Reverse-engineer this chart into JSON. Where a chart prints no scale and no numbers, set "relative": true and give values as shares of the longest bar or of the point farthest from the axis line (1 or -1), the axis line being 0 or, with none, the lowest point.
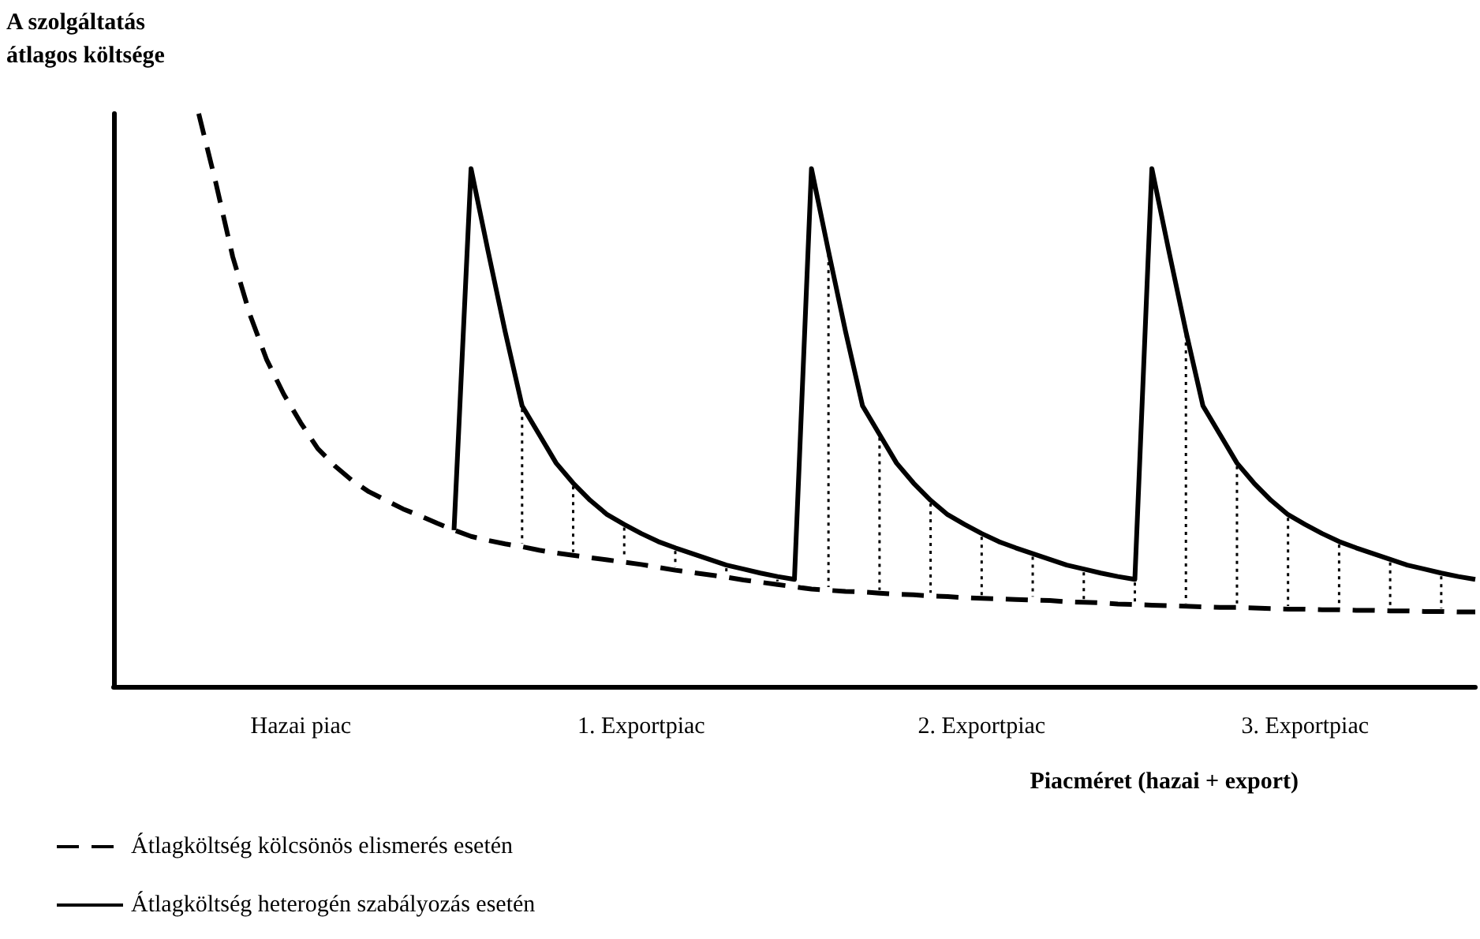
{
  "chart_data": {
    "type": "line",
    "relative": true,
    "ylabel": "A szolgáltatás\nátlagos költsége",
    "xlabel": "Piacméret (hazai + export)",
    "categories": [
      null,
      null,
      null,
      null,
      null,
      null,
      null,
      null,
      null,
      null,
      null,
      "Hazai piac",
      null,
      null,
      null,
      null,
      null,
      null,
      null,
      null,
      null,
      null,
      null,
      null,
      null,
      null,
      null,
      null,
      null,
      null,
      null,
      "1. Exportpiac",
      null,
      null,
      null,
      null,
      null,
      null,
      null,
      null,
      null,
      null,
      null,
      null,
      null,
      null,
      null,
      null,
      null,
      null,
      null,
      "2. Exportpiac",
      null,
      null,
      null,
      null,
      null,
      null,
      null,
      null,
      null,
      null,
      null,
      null,
      null,
      null,
      null,
      null,
      null,
      null,
      "3. Exportpiac",
      null,
      null,
      null,
      null,
      null,
      null,
      null,
      null,
      null,
      null
    ],
    "legend": "bottom left",
    "marker": "none",
    "grid": false,
    "series": [
      {
        "name": "Átlagköltség kölcsönös elismerés esetén",
        "color": "#000000",
        "line_style": "dashed",
        "values": [
          null,
          null,
          null,
          null,
          null,
          1.0,
          0.88,
          0.75,
          0.65,
          0.57,
          0.51,
          0.46,
          0.415,
          0.385,
          0.36,
          0.34,
          0.325,
          0.31,
          0.298,
          0.285,
          0.273,
          0.262,
          0.255,
          0.249,
          0.244,
          0.238,
          0.233,
          0.229,
          0.225,
          0.221,
          0.217,
          0.213,
          0.208,
          0.203,
          0.199,
          0.195,
          0.191,
          0.186,
          0.182,
          0.178,
          0.174,
          0.17,
          0.168,
          0.166,
          0.165,
          0.163,
          0.161,
          0.16,
          0.158,
          0.157,
          0.155,
          0.154,
          0.153,
          0.152,
          0.151,
          0.15,
          0.148,
          0.147,
          0.146,
          0.144,
          0.143,
          0.142,
          0.141,
          0.14,
          0.139,
          0.138,
          0.138,
          0.137,
          0.136,
          0.135,
          0.135,
          0.134,
          0.134,
          0.133,
          0.133,
          0.132,
          0.132,
          0.131,
          0.131,
          0.13,
          0.13
        ]
      },
      {
        "name": "Átlagköltség heterogén szabályozás esetén",
        "color": "#000000",
        "line_style": "solid",
        "values": [
          null,
          null,
          null,
          null,
          null,
          null,
          null,
          null,
          null,
          null,
          null,
          null,
          null,
          null,
          null,
          null,
          null,
          null,
          null,
          null,
          0.273,
          0.904,
          0.76,
          0.62,
          0.49,
          0.44,
          0.39,
          0.355,
          0.325,
          0.3,
          0.283,
          0.267,
          0.253,
          0.242,
          0.232,
          0.222,
          0.212,
          0.205,
          0.198,
          0.192,
          0.187,
          0.904,
          0.76,
          0.62,
          0.49,
          0.44,
          0.39,
          0.355,
          0.325,
          0.3,
          0.283,
          0.267,
          0.253,
          0.242,
          0.232,
          0.222,
          0.212,
          0.205,
          0.198,
          0.192,
          0.187,
          0.904,
          0.76,
          0.62,
          0.49,
          0.44,
          0.39,
          0.355,
          0.325,
          0.3,
          0.283,
          0.267,
          0.253,
          0.242,
          0.232,
          0.222,
          0.212,
          0.205,
          0.198,
          0.192,
          0.187
        ]
      }
    ]
  }
}
